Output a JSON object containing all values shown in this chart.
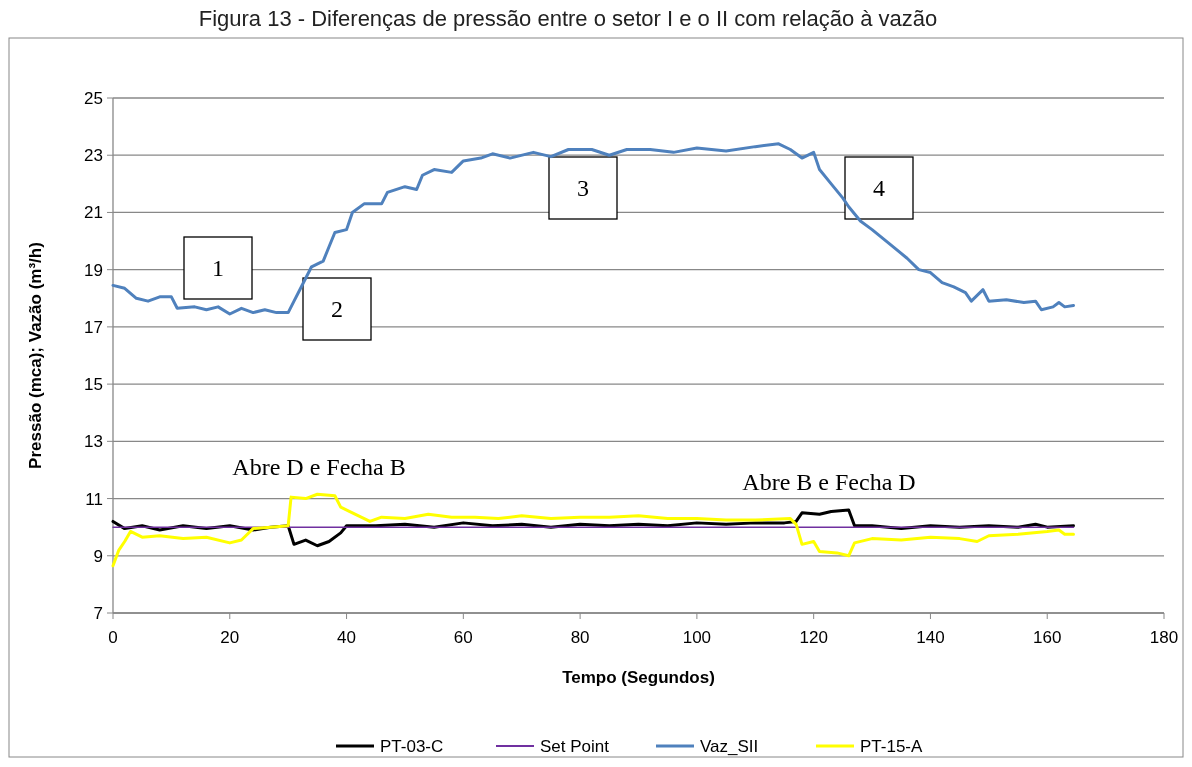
{
  "chart_data": {
    "type": "line",
    "title": "Figura 13 - Diferenças de pressão entre o setor I e o II com relação à vazão",
    "xlabel": "Tempo (Segundos)",
    "ylabel": "Pressão (mca); Vazão (m³/h)",
    "xlim": [
      0,
      180
    ],
    "xticks": [
      0,
      20,
      40,
      60,
      80,
      100,
      120,
      140,
      160,
      180
    ],
    "ylim": [
      7,
      25
    ],
    "yticks": [
      7,
      9,
      11,
      13,
      15,
      17,
      19,
      21,
      23,
      25
    ],
    "grid": "y",
    "legend": "bottom",
    "marker": "none",
    "line_style": "solid",
    "annotations": [
      "1",
      "2",
      "3",
      "4",
      "Abre D e Fecha B",
      "Abre B e Fecha D"
    ],
    "series": [
      {
        "name": "PT-03-C",
        "color": "#000000",
        "x": [
          0,
          2,
          5,
          8,
          12,
          16,
          20,
          24,
          27,
          30,
          31,
          33,
          35,
          37,
          39,
          40,
          45,
          50,
          55,
          60,
          65,
          70,
          75,
          80,
          85,
          90,
          95,
          100,
          105,
          110,
          115,
          117,
          118,
          121,
          123,
          126,
          127,
          130,
          135,
          140,
          145,
          150,
          155,
          158,
          160,
          164.5
        ],
        "values": [
          10.2,
          9.95,
          10.05,
          9.9,
          10.05,
          9.95,
          10.05,
          9.9,
          10,
          10.05,
          9.4,
          9.55,
          9.35,
          9.5,
          9.8,
          10.05,
          10.05,
          10.1,
          10,
          10.15,
          10.05,
          10.1,
          10,
          10.1,
          10.05,
          10.1,
          10.05,
          10.15,
          10.1,
          10.15,
          10.15,
          10.2,
          10.5,
          10.45,
          10.55,
          10.6,
          10.05,
          10.05,
          9.95,
          10.05,
          10,
          10.05,
          10,
          10.1,
          10,
          10.05
        ]
      },
      {
        "name": "Set Point",
        "color": "#7030a0",
        "x": [
          0,
          164.5
        ],
        "values": [
          10,
          10
        ]
      },
      {
        "name": "Vaz_SII",
        "color": "#4f81bd",
        "x": [
          0,
          2,
          4,
          6,
          8,
          10,
          11,
          14,
          16,
          18,
          20,
          22,
          24,
          26,
          28,
          30,
          31,
          32,
          34,
          36,
          37,
          38,
          40,
          41,
          43,
          46,
          47,
          50,
          52,
          53,
          55,
          58,
          60,
          63,
          65,
          68,
          72,
          75,
          78,
          82,
          85,
          88,
          92,
          96,
          100,
          105,
          110,
          114,
          116,
          118,
          120,
          121,
          123,
          125,
          126,
          128,
          130,
          133,
          136,
          138,
          140,
          142,
          144,
          146,
          147,
          149,
          150,
          153,
          156,
          158,
          159,
          161,
          162,
          163,
          164.5
        ],
        "values": [
          18.45,
          18.35,
          18,
          17.9,
          18.05,
          18.05,
          17.65,
          17.7,
          17.6,
          17.7,
          17.45,
          17.65,
          17.5,
          17.6,
          17.5,
          17.5,
          17.9,
          18.3,
          19.1,
          19.3,
          19.8,
          20.3,
          20.4,
          21,
          21.3,
          21.3,
          21.7,
          21.9,
          21.8,
          22.3,
          22.5,
          22.4,
          22.8,
          22.9,
          23.05,
          22.9,
          23.1,
          22.95,
          23.2,
          23.2,
          23,
          23.2,
          23.2,
          23.1,
          23.25,
          23.15,
          23.3,
          23.4,
          23.2,
          22.9,
          23.1,
          22.5,
          22,
          21.5,
          21.2,
          20.7,
          20.4,
          19.9,
          19.4,
          19,
          18.9,
          18.55,
          18.4,
          18.2,
          17.9,
          18.3,
          17.9,
          17.95,
          17.85,
          17.9,
          17.6,
          17.7,
          17.85,
          17.7,
          17.75
        ]
      },
      {
        "name": "PT-15-A",
        "color": "#ffff00",
        "x": [
          0,
          1,
          2,
          3,
          5,
          8,
          12,
          16,
          20,
          22,
          24,
          27,
          30,
          30.5,
          33,
          35,
          38,
          39,
          41,
          44,
          46,
          50,
          54,
          58,
          62,
          66,
          70,
          75,
          80,
          85,
          90,
          95,
          100,
          105,
          110,
          116,
          117,
          118,
          120,
          121,
          124,
          126,
          127,
          130,
          135,
          140,
          145,
          148,
          150,
          155,
          160,
          162,
          163,
          164.5
        ],
        "values": [
          8.65,
          9.2,
          9.5,
          9.85,
          9.65,
          9.7,
          9.6,
          9.65,
          9.45,
          9.55,
          9.95,
          10,
          10.05,
          11.05,
          11,
          11.15,
          11.1,
          10.7,
          10.5,
          10.2,
          10.35,
          10.3,
          10.45,
          10.35,
          10.35,
          10.3,
          10.4,
          10.3,
          10.35,
          10.35,
          10.4,
          10.3,
          10.3,
          10.25,
          10.25,
          10.3,
          10.1,
          9.4,
          9.5,
          9.15,
          9.1,
          9,
          9.45,
          9.6,
          9.55,
          9.65,
          9.6,
          9.5,
          9.7,
          9.75,
          9.85,
          9.9,
          9.75,
          9.75
        ]
      }
    ]
  }
}
